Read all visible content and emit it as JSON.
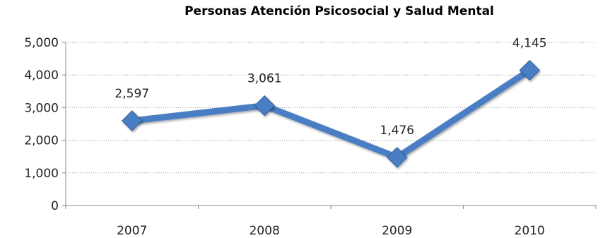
{
  "chart_data": {
    "type": "line",
    "title": "Personas Atención Psicosocial y Salud Mental",
    "categories": [
      "2007",
      "2008",
      "2009",
      "2010"
    ],
    "series": [
      {
        "values": [
          2597,
          3061,
          1476,
          4145
        ]
      }
    ],
    "data_labels": [
      "2,597",
      "3,061",
      "1,476",
      "4,145"
    ],
    "y_ticks": [
      "0",
      "1,000",
      "2,000",
      "3,000",
      "4,000",
      "5,000"
    ],
    "ylim": [
      0,
      5000
    ],
    "grid": true,
    "legend": "none",
    "colors": {
      "line": "#4a7ec4",
      "line_dark": "#2f5f9e",
      "marker": "#4a7ec4",
      "grid": "#9a9a9a"
    }
  }
}
